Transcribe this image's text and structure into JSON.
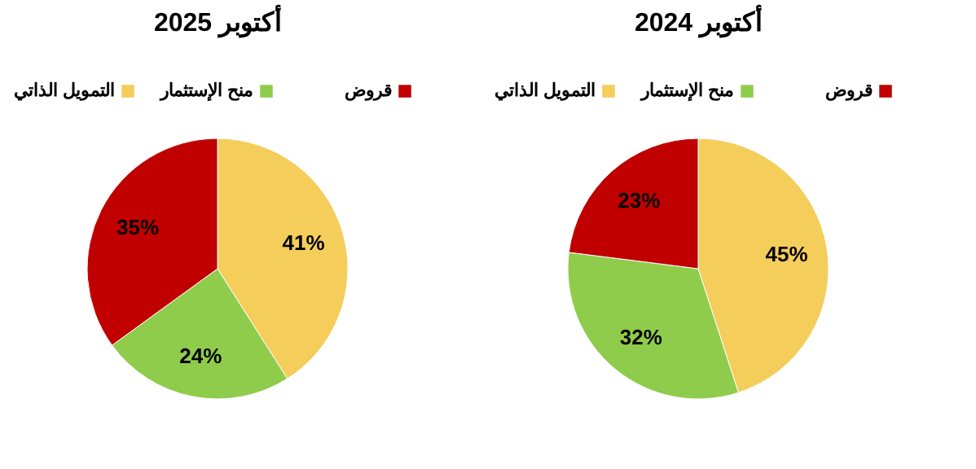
{
  "chart_data": [
    {
      "type": "pie",
      "title": "أكتوبر 2025",
      "categories": [
        "التمويل الذاتي",
        "منح الإستثمار",
        "قروض"
      ],
      "values": [
        41,
        24,
        35
      ],
      "colors": [
        "#f5cd5a",
        "#8fcc4c",
        "#c00000"
      ],
      "value_labels": [
        "41%",
        "24%",
        "35%"
      ],
      "legend": "top"
    },
    {
      "type": "pie",
      "title": "أكتوبر 2024",
      "categories": [
        "التمويل الذاتي",
        "منح الإستثمار",
        "قروض"
      ],
      "values": [
        45,
        32,
        23
      ],
      "colors": [
        "#f5cd5a",
        "#8fcc4c",
        "#c00000"
      ],
      "value_labels": [
        "45%",
        "32%",
        "23%"
      ],
      "legend": "top"
    }
  ]
}
